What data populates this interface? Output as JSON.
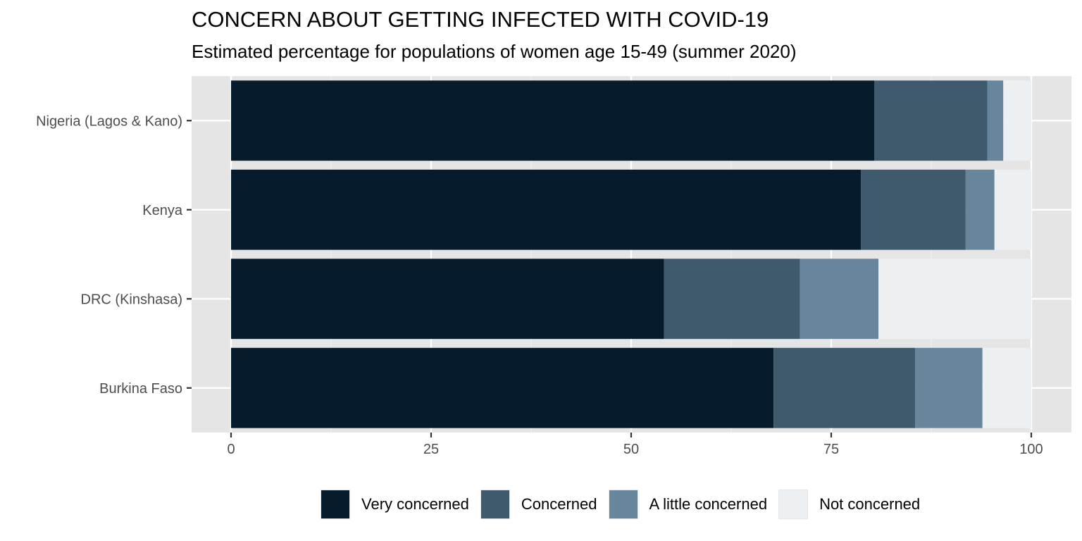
{
  "chart_data": {
    "type": "bar",
    "orientation": "horizontal",
    "stacked": true,
    "title": "CONCERN ABOUT GETTING INFECTED WITH COVID-19",
    "subtitle": "Estimated percentage for populations of women age 15-49 (summer 2020)",
    "xlabel": "",
    "ylabel": "",
    "xlim": [
      -5,
      104
    ],
    "x_ticks": [
      0,
      25,
      50,
      75,
      100
    ],
    "grid": true,
    "legend_position": "bottom",
    "categories": [
      "Nigeria (Lagos & Kano)",
      "Kenya",
      "DRC (Kinshasa)",
      "Burkina Faso"
    ],
    "series": [
      {
        "name": "Very concerned",
        "color": "#061c2c",
        "values": [
          80.4,
          78.7,
          54.1,
          67.8
        ]
      },
      {
        "name": "Concerned",
        "color": "#3f5a6d",
        "values": [
          14.1,
          13.1,
          17.0,
          17.7
        ]
      },
      {
        "name": "A little concerned",
        "color": "#68869b",
        "values": [
          2.0,
          3.6,
          9.8,
          8.4
        ]
      },
      {
        "name": "Not concerned",
        "color": "#edf0f3",
        "values": [
          3.5,
          4.6,
          19.1,
          6.1
        ]
      }
    ]
  }
}
